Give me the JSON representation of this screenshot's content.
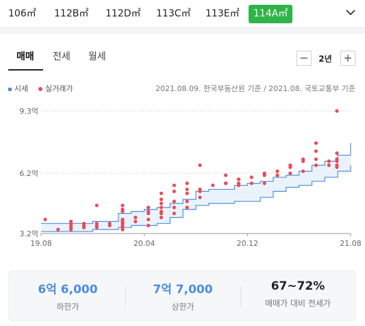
{
  "size_tabs": [
    {
      "label": "106㎡",
      "active": false
    },
    {
      "label": "112B㎡",
      "active": false
    },
    {
      "label": "112D㎡",
      "active": false
    },
    {
      "label": "113C㎡",
      "active": false
    },
    {
      "label": "113E㎡",
      "active": false
    },
    {
      "label": "114A㎡",
      "active": true
    }
  ],
  "expand_icon": "chevron-down-icon",
  "trade_tabs": [
    {
      "label": "매매",
      "active": true
    },
    {
      "label": "전세",
      "active": false
    },
    {
      "label": "월세",
      "active": false
    }
  ],
  "period": {
    "minus": "−",
    "label": "2년",
    "plus": "+"
  },
  "legend": {
    "price": "시세",
    "transactions": "실거래가"
  },
  "source_text": "2021.08.09. 한국부동산원 기준 / 2021.08. 국토교통부 기준",
  "colors": {
    "accent": "#2fb34a",
    "price_line": "#4a8de0",
    "band_fill": "#eaf3fc",
    "transaction": "#e94b55",
    "stat_blue": "#4a8de0"
  },
  "chart_data": {
    "type": "scatter",
    "y_unit": "억",
    "ylim": [
      3.2,
      9.3
    ],
    "y_ticks": [
      {
        "value": 9.3,
        "label": "9.3억"
      },
      {
        "value": 6.2,
        "label": "6.2억"
      },
      {
        "value": 3.2,
        "label": "3.2억"
      }
    ],
    "xlim": [
      "2019-08",
      "2021-08"
    ],
    "x_ticks": [
      {
        "value": "2019-08",
        "label": "19.08"
      },
      {
        "value": "2020-04",
        "label": "20.04"
      },
      {
        "value": "2020-12",
        "label": "20.12"
      },
      {
        "value": "2021-08",
        "label": "21.08"
      }
    ],
    "series": [
      {
        "name": "시세",
        "kind": "band",
        "x": [
          "2019-08",
          "2019-09",
          "2019-10",
          "2019-11",
          "2019-12",
          "2020-01",
          "2020-02",
          "2020-03",
          "2020-04",
          "2020-05",
          "2020-06",
          "2020-07",
          "2020-08",
          "2020-09",
          "2020-10",
          "2020-11",
          "2020-12",
          "2021-01",
          "2021-02",
          "2021-03",
          "2021-04",
          "2021-05",
          "2021-06",
          "2021-07",
          "2021-08"
        ],
        "upper": [
          3.7,
          3.7,
          3.7,
          3.7,
          3.8,
          3.8,
          4.2,
          4.3,
          4.4,
          4.5,
          4.7,
          4.9,
          5.3,
          5.4,
          5.4,
          5.6,
          5.7,
          5.8,
          6.0,
          6.1,
          6.3,
          6.6,
          6.8,
          7.1,
          7.7
        ],
        "lower": [
          3.3,
          3.3,
          3.3,
          3.3,
          3.4,
          3.4,
          3.5,
          3.6,
          3.6,
          3.7,
          4.0,
          4.4,
          4.6,
          4.7,
          4.7,
          4.8,
          4.8,
          5.0,
          5.3,
          5.5,
          5.6,
          5.8,
          6.0,
          6.3,
          6.6
        ]
      },
      {
        "name": "실거래가",
        "kind": "points",
        "points": [
          [
            "2019-08",
            3.9
          ],
          [
            "2019-09",
            3.4
          ],
          [
            "2019-10",
            3.4
          ],
          [
            "2019-10",
            3.5
          ],
          [
            "2019-10",
            3.6
          ],
          [
            "2019-10",
            3.7
          ],
          [
            "2019-10",
            3.8
          ],
          [
            "2019-11",
            3.5
          ],
          [
            "2019-11",
            3.6
          ],
          [
            "2019-11",
            3.7
          ],
          [
            "2019-12",
            3.5
          ],
          [
            "2019-12",
            3.6
          ],
          [
            "2019-12",
            3.7
          ],
          [
            "2019-12",
            4.6
          ],
          [
            "2020-01",
            3.6
          ],
          [
            "2020-01",
            3.7
          ],
          [
            "2020-02",
            3.4
          ],
          [
            "2020-02",
            3.5
          ],
          [
            "2020-02",
            3.6
          ],
          [
            "2020-02",
            3.7
          ],
          [
            "2020-02",
            3.8
          ],
          [
            "2020-02",
            3.9
          ],
          [
            "2020-02",
            4.3
          ],
          [
            "2020-02",
            4.4
          ],
          [
            "2020-02",
            4.6
          ],
          [
            "2020-03",
            3.8
          ],
          [
            "2020-03",
            4.0
          ],
          [
            "2020-04",
            3.6
          ],
          [
            "2020-04",
            3.9
          ],
          [
            "2020-04",
            4.2
          ],
          [
            "2020-04",
            4.3
          ],
          [
            "2020-04",
            4.5
          ],
          [
            "2020-05",
            4.0
          ],
          [
            "2020-05",
            4.2
          ],
          [
            "2020-05",
            4.3
          ],
          [
            "2020-05",
            4.5
          ],
          [
            "2020-05",
            4.7
          ],
          [
            "2020-05",
            4.9
          ],
          [
            "2020-05",
            5.2
          ],
          [
            "2020-06",
            4.2
          ],
          [
            "2020-06",
            4.5
          ],
          [
            "2020-06",
            4.8
          ],
          [
            "2020-06",
            5.3
          ],
          [
            "2020-06",
            5.6
          ],
          [
            "2020-07",
            4.5
          ],
          [
            "2020-07",
            4.8
          ],
          [
            "2020-07",
            5.2
          ],
          [
            "2020-07",
            5.4
          ],
          [
            "2020-07",
            5.7
          ],
          [
            "2020-08",
            5.0
          ],
          [
            "2020-08",
            5.4
          ],
          [
            "2020-08",
            6.6
          ],
          [
            "2020-08",
            5.3
          ],
          [
            "2020-09",
            5.6
          ],
          [
            "2020-10",
            5.7
          ],
          [
            "2020-10",
            5.7
          ],
          [
            "2020-10",
            6.1
          ],
          [
            "2020-11",
            5.6
          ],
          [
            "2020-11",
            5.7
          ],
          [
            "2020-11",
            5.9
          ],
          [
            "2020-12",
            5.7
          ],
          [
            "2020-12",
            6.0
          ],
          [
            "2021-01",
            5.7
          ],
          [
            "2021-01",
            6.1
          ],
          [
            "2021-01",
            6.2
          ],
          [
            "2021-02",
            6.1
          ],
          [
            "2021-02",
            6.3
          ],
          [
            "2021-03",
            6.2
          ],
          [
            "2021-03",
            6.5
          ],
          [
            "2021-03",
            6.6
          ],
          [
            "2021-04",
            6.3
          ],
          [
            "2021-04",
            6.8
          ],
          [
            "2021-04",
            6.9
          ],
          [
            "2021-05",
            6.6
          ],
          [
            "2021-05",
            6.9
          ],
          [
            "2021-05",
            7.3
          ],
          [
            "2021-05",
            7.7
          ],
          [
            "2021-06",
            6.6
          ],
          [
            "2021-06",
            6.8
          ],
          [
            "2021-07",
            6.6
          ],
          [
            "2021-07",
            6.8
          ],
          [
            "2021-07",
            6.9
          ],
          [
            "2021-07",
            7.2
          ],
          [
            "2021-08",
            6.5
          ],
          [
            "2021-08",
            6.9
          ],
          [
            "2021-08",
            9.3
          ]
        ]
      }
    ]
  },
  "summary": [
    {
      "value": "6억 6,000",
      "label": "하한가",
      "style": "blue"
    },
    {
      "value": "7억 7,000",
      "label": "상한가",
      "style": "blue"
    },
    {
      "value": "67~72%",
      "label": "매매가 대비 전세가",
      "style": "dark"
    }
  ]
}
